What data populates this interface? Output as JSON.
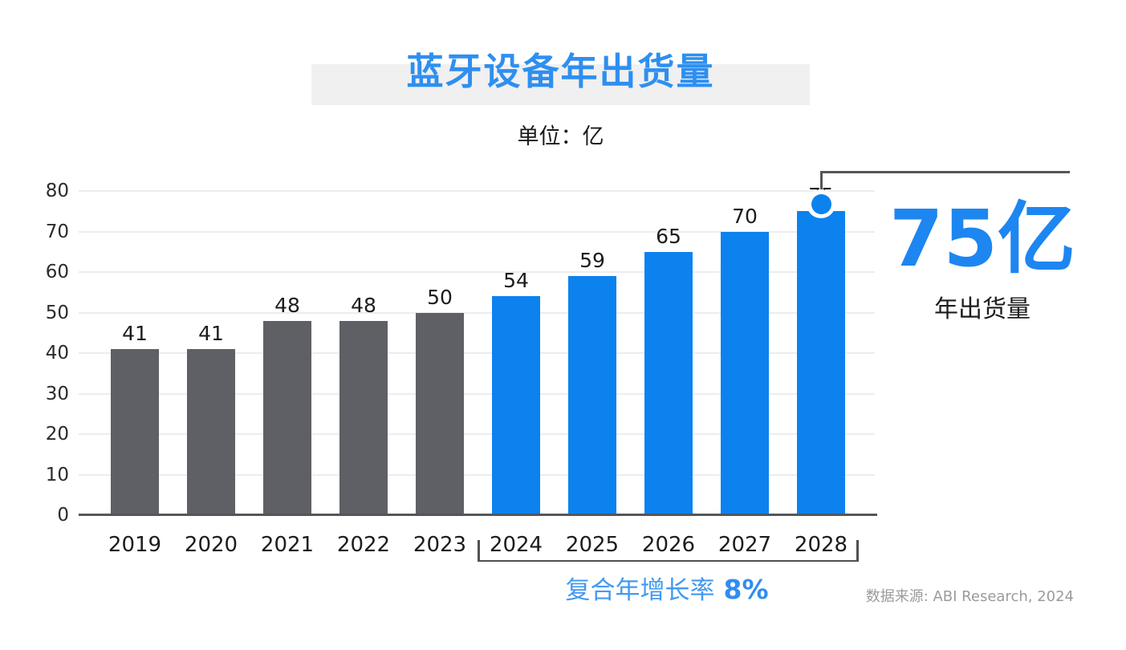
{
  "slide": {
    "title": "蓝牙设备年出货量",
    "subtitle": "单位：亿",
    "callout": {
      "big_number": "75亿",
      "big_label": "年出货量"
    },
    "cagr": {
      "label": "复合年增长率",
      "value": "8%"
    },
    "source": "数据来源: ABI Research, 2024"
  },
  "colors": {
    "title_blue": "#2e8ff0",
    "title_background": "#f0f0f1",
    "bar_gray": "#5f6065",
    "bar_blue": "#0c82ef",
    "accent_blue": "#1d86f1",
    "cagr_blue": "#3e97f1",
    "axis_gray": "#55565a",
    "gridline_gray": "#ededef",
    "source_gray": "#9b9b9b",
    "text_dark": "#1c1c1e"
  },
  "chart_data": {
    "type": "bar",
    "title": "蓝牙设备年出货量",
    "unit_label": "单位：亿",
    "categories": [
      "2019",
      "2020",
      "2021",
      "2022",
      "2023",
      "2024",
      "2025",
      "2026",
      "2027",
      "2028"
    ],
    "values": [
      41,
      41,
      48,
      48,
      50,
      54,
      59,
      65,
      70,
      75
    ],
    "bar_colors": [
      "gray",
      "gray",
      "gray",
      "gray",
      "gray",
      "blue",
      "blue",
      "blue",
      "blue",
      "blue"
    ],
    "xlabel": "",
    "ylabel": "",
    "ylim": [
      0,
      80
    ],
    "ytick_step": 10,
    "grid": true,
    "data_labels": true,
    "highlight": {
      "category": "2028",
      "value": 75,
      "label": "75亿",
      "caption": "年出货量"
    },
    "cagr_bracket": {
      "from": "2024",
      "to": "2028",
      "label": "复合年增长率",
      "value": "8%"
    },
    "source": "数据来源: ABI Research, 2024"
  }
}
